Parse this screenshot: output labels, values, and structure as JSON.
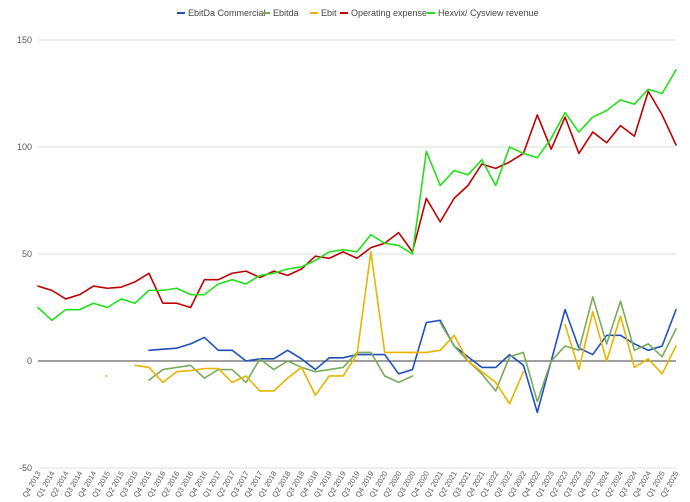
{
  "chart_data": {
    "type": "line",
    "ylim": [
      -50,
      150
    ],
    "yticks": [
      -50,
      0,
      50,
      100,
      150
    ],
    "grid": true,
    "legend_position": "top-center",
    "categories": [
      "Q4 2013",
      "Q1 2014",
      "Q2 2014",
      "Q3 2014",
      "Q4 2014",
      "Q1 2015",
      "Q2 2015",
      "Q3 2015",
      "Q4 2015",
      "Q1 2016",
      "Q2 2016",
      "Q3 2016",
      "Q4 2016",
      "Q1 2017",
      "Q2 2017",
      "Q3 2017",
      "Q4 2017",
      "Q1 2018",
      "Q2 2018",
      "Q3 2018",
      "Q4 2018",
      "Q1 2019",
      "Q2 2019",
      "Q3 2019",
      "Q4 2019",
      "Q1 2020",
      "Q2 2020",
      "Q3 2020",
      "Q4 2020",
      "Q1 2021",
      "Q2 2021",
      "Q3 2021",
      "Q4 2021",
      "Q1 2022",
      "Q2 2022",
      "Q3 2022",
      "Q4 2022",
      "Q1 2023",
      "Q2 2023",
      "Q3 2023",
      "Q4 2023",
      "Q1 2024",
      "Q2 2024",
      "Q3 2024",
      "Q4 2024",
      "Q1 2025",
      "Q2 2025"
    ],
    "series": [
      {
        "name": "EbitDa Commercial",
        "color": "#1f4fbf",
        "values": [
          null,
          null,
          null,
          null,
          null,
          null,
          null,
          null,
          5,
          5.5,
          6,
          8,
          11,
          5,
          5,
          0,
          1,
          1,
          5,
          1,
          -4,
          1.5,
          1.5,
          3,
          3,
          3,
          -6,
          -4,
          18,
          19,
          7,
          2,
          -3,
          -3,
          3,
          -2,
          -24,
          0,
          24,
          6,
          3,
          12,
          12,
          8,
          5,
          7,
          24
        ]
      },
      {
        "name": "Ebitda",
        "color": "#7aaa5a",
        "values": [
          null,
          null,
          null,
          null,
          null,
          null,
          null,
          null,
          -9,
          -4,
          -3,
          -2,
          -8,
          -4,
          -4,
          -10,
          1,
          -4,
          0,
          -3,
          -5,
          -4,
          -3,
          4,
          4,
          -7,
          -10,
          -7,
          null,
          18,
          7,
          0,
          -6,
          -14,
          2,
          4,
          -19,
          0,
          7,
          5,
          30,
          8,
          28,
          5,
          8,
          2,
          15
        ]
      },
      {
        "name": "Ebit",
        "color": "#e8b400",
        "values": [
          null,
          null,
          null,
          null,
          null,
          -7,
          null,
          -2,
          -3,
          -10,
          -5,
          -4.5,
          -3.5,
          -3.5,
          -10,
          -7,
          -14,
          -14,
          -8,
          -3,
          -16,
          -7,
          -7,
          3,
          51,
          4,
          4,
          4,
          4,
          5,
          12,
          0,
          -5,
          -10,
          -20,
          -5,
          null,
          null,
          17,
          -4,
          23,
          0,
          21,
          -3,
          1,
          -6,
          7
        ]
      },
      {
        "name": "Operating expense",
        "color": "#c00000",
        "values": [
          35,
          33,
          29,
          31,
          35,
          34,
          34.5,
          37,
          41,
          27,
          27,
          25,
          38,
          38,
          41,
          42,
          39,
          42,
          40,
          43,
          49,
          48,
          51,
          48,
          53,
          55,
          60,
          51,
          76,
          65,
          76,
          82,
          92,
          90,
          93,
          97,
          115,
          99,
          114,
          97,
          107,
          102,
          110,
          105,
          126,
          115,
          101
        ]
      },
      {
        "name": "Hexvix/ Cysview revenue",
        "color": "#22e01a",
        "values": [
          25,
          19,
          24,
          24,
          27,
          25,
          29,
          27,
          33,
          33,
          34,
          31,
          31,
          36,
          38,
          36,
          40,
          41,
          43,
          44,
          47,
          51,
          52,
          51,
          59,
          55,
          54,
          50,
          98,
          82,
          89,
          87,
          94,
          82,
          100,
          97,
          95,
          104,
          116,
          107,
          114,
          117,
          122,
          120,
          127,
          125,
          136
        ]
      }
    ]
  }
}
